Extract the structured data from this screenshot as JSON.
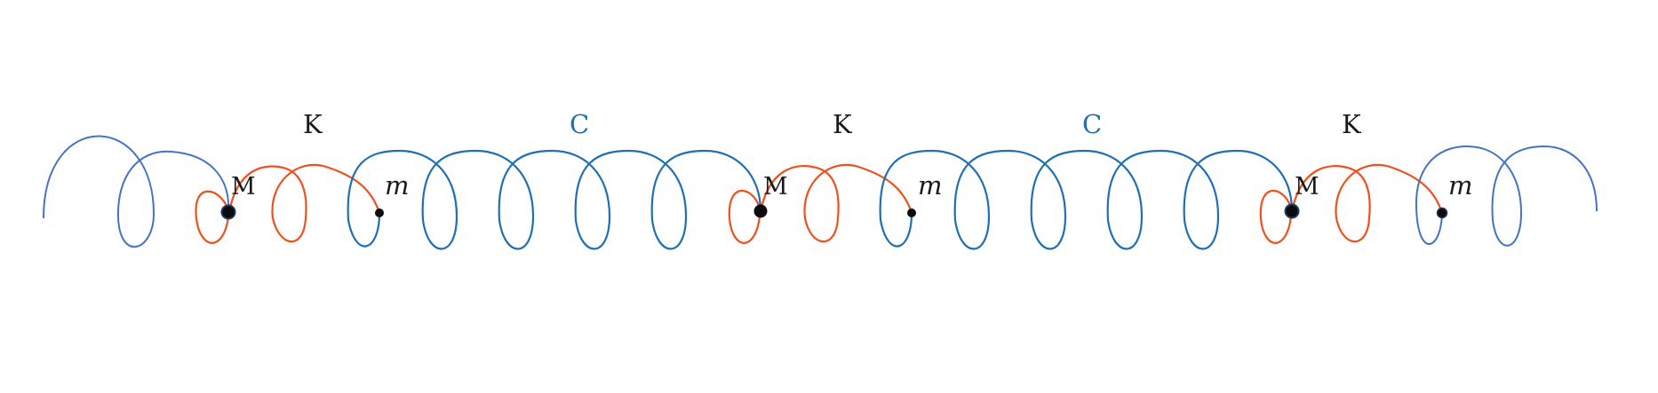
{
  "colors": {
    "spring_outer": "#4472c4",
    "spring_c": "#1f6fb4",
    "spring_k": "#f0501e",
    "mass": "#0b0b0b",
    "label_c": "#1f6fb4",
    "label_dark": "#1a1a1a"
  },
  "labels": {
    "k_spring": "K",
    "c_spring": "C",
    "big_mass": "M",
    "small_mass": "m"
  }
}
